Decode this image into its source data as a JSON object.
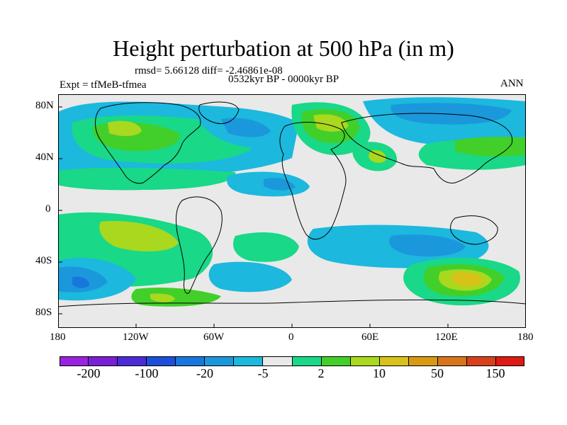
{
  "title": "Height perturbation at 500 hPa (in m)",
  "stats": "rmsd= 5.66128 diff= -2.46861e-08",
  "expt": "Expt = tfMeB-tfmea",
  "period": "0532kyr BP - 0000kyr BP",
  "season": "ANN",
  "lat_labels": [
    "80N",
    "40N",
    "0",
    "40S",
    "80S"
  ],
  "lon_labels": [
    "180",
    "120W",
    "60W",
    "0",
    "60E",
    "120E",
    "180"
  ],
  "colorbar": {
    "colors": [
      "#9b22e0",
      "#7a1fd6",
      "#4b2bd6",
      "#1d4fd8",
      "#1877dc",
      "#1b98dc",
      "#1cb8de",
      "#e9e9e9",
      "#19d887",
      "#42cf2a",
      "#a9d81e",
      "#d8c21a",
      "#d89a14",
      "#d8741a",
      "#d8401c",
      "#de1a14"
    ],
    "labels": [
      "-200",
      "-100",
      "-20",
      "-5",
      "2",
      "10",
      "50",
      "150"
    ]
  },
  "colors": {
    "land_background": "#e9e9e9"
  }
}
